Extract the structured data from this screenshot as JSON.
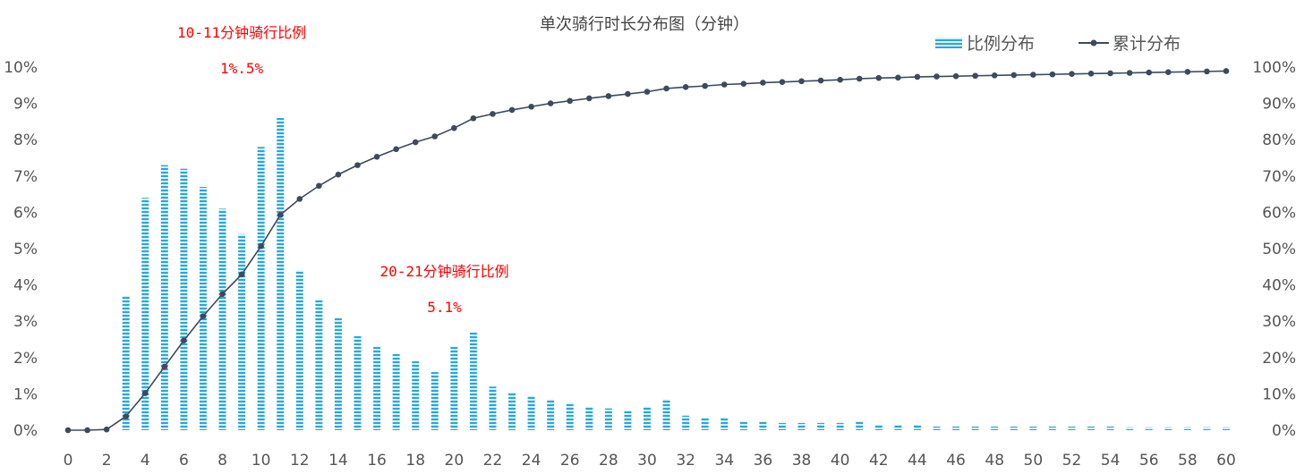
{
  "chart_data": {
    "type": "bar",
    "title": "单次骑行时长分布图（分钟）",
    "xlabel": "",
    "ylabel": "",
    "x": [
      0,
      1,
      2,
      3,
      4,
      5,
      6,
      7,
      8,
      9,
      10,
      11,
      12,
      13,
      14,
      15,
      16,
      17,
      18,
      19,
      20,
      21,
      22,
      23,
      24,
      25,
      26,
      27,
      28,
      29,
      30,
      31,
      32,
      33,
      34,
      35,
      36,
      37,
      38,
      39,
      40,
      41,
      42,
      43,
      44,
      45,
      46,
      47,
      48,
      49,
      50,
      51,
      52,
      53,
      54,
      55,
      56,
      57,
      58,
      59,
      60
    ],
    "x_tick_labels": [
      "0",
      "2",
      "4",
      "6",
      "8",
      "10",
      "12",
      "14",
      "16",
      "18",
      "20",
      "22",
      "24",
      "26",
      "28",
      "30",
      "32",
      "34",
      "36",
      "38",
      "40",
      "42",
      "44",
      "46",
      "48",
      "50",
      "52",
      "54",
      "56",
      "58",
      "60"
    ],
    "y_tick_labels": [
      "0%",
      "1%",
      "2%",
      "3%",
      "4%",
      "5%",
      "6%",
      "7%",
      "8%",
      "9%",
      "10%"
    ],
    "y2_tick_labels": [
      "0%",
      "10%",
      "20%",
      "30%",
      "40%",
      "50%",
      "60%",
      "70%",
      "80%",
      "90%",
      "100%"
    ],
    "xlim": [
      0,
      60
    ],
    "ylim": [
      0,
      10
    ],
    "y2lim": [
      0,
      100
    ],
    "grid": false,
    "legend_position": "top-right",
    "series": [
      {
        "name": "比例分布",
        "type": "bar",
        "axis": "left",
        "color": "#2aa7d6",
        "values": [
          0,
          0,
          0,
          3.7,
          6.4,
          7.3,
          7.2,
          6.7,
          6.1,
          5.4,
          7.8,
          8.6,
          4.4,
          3.6,
          3.1,
          2.6,
          2.3,
          2.1,
          1.9,
          1.6,
          2.3,
          2.7,
          1.2,
          1.05,
          0.95,
          0.85,
          0.75,
          0.65,
          0.6,
          0.55,
          0.65,
          0.85,
          0.4,
          0.35,
          0.35,
          0.25,
          0.25,
          0.2,
          0.2,
          0.2,
          0.2,
          0.25,
          0.15,
          0.15,
          0.15,
          0.1,
          0.1,
          0.1,
          0.1,
          0.1,
          0.1,
          0.1,
          0.1,
          0.1,
          0.1,
          0.08,
          0.08,
          0.08,
          0.08,
          0.08,
          0.08
        ]
      },
      {
        "name": "累计分布",
        "type": "line",
        "axis": "right",
        "color": "#3d4a5c",
        "values": [
          0,
          0,
          0.2,
          3.8,
          10.2,
          17.5,
          24.7,
          31.4,
          37.5,
          42.9,
          50.7,
          59.3,
          63.7,
          67.3,
          70.4,
          73.0,
          75.3,
          77.4,
          79.3,
          80.9,
          83.2,
          85.9,
          87.1,
          88.2,
          89.1,
          90.0,
          90.7,
          91.4,
          92.0,
          92.6,
          93.2,
          94.1,
          94.5,
          94.8,
          95.2,
          95.4,
          95.7,
          95.9,
          96.1,
          96.3,
          96.5,
          96.8,
          97.0,
          97.1,
          97.3,
          97.4,
          97.5,
          97.6,
          97.7,
          97.8,
          97.9,
          98.0,
          98.1,
          98.2,
          98.3,
          98.4,
          98.5,
          98.6,
          98.7,
          98.8,
          98.9
        ]
      }
    ],
    "annotations": [
      {
        "title": "10-11分钟骑行比例",
        "value": "1%.5%",
        "x": 9
      },
      {
        "title": "20-21分钟骑行比例",
        "value": "5.1%",
        "x": 19.5
      }
    ]
  }
}
